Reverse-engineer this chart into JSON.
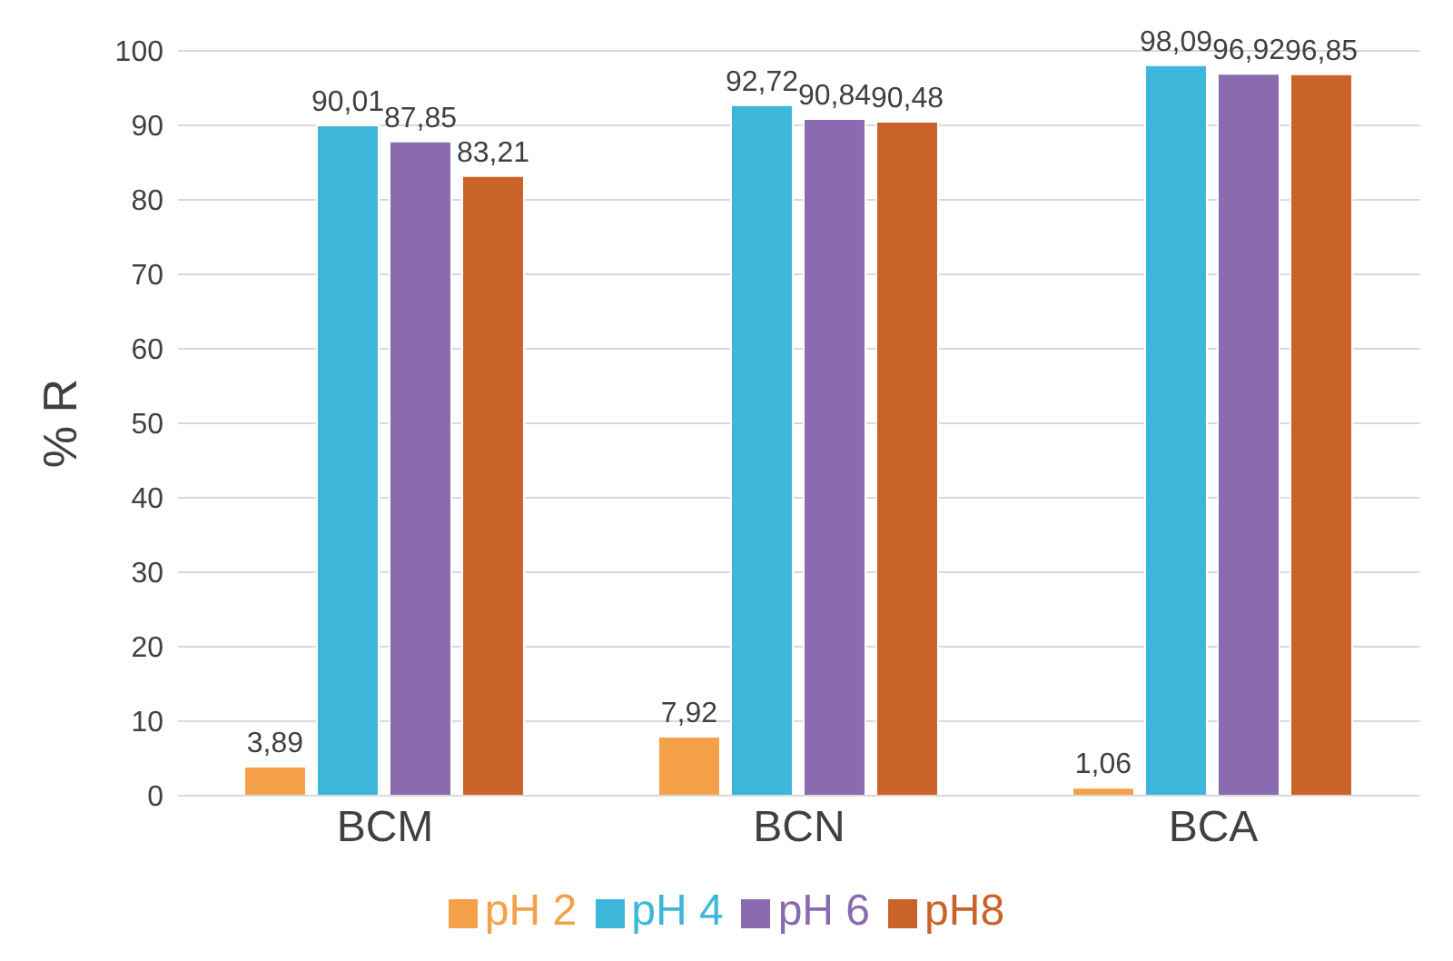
{
  "chart_data": {
    "type": "bar",
    "ylabel": "% R",
    "categories": [
      "BCM",
      "BCN",
      "BCA"
    ],
    "series": [
      {
        "name": "pH 2",
        "color": "#f4a14a",
        "values": [
          3.89,
          7.92,
          1.06
        ],
        "value_labels": [
          "3,89",
          "7,92",
          "1,06"
        ]
      },
      {
        "name": "pH 4",
        "color": "#3db7d9",
        "values": [
          90.01,
          92.72,
          98.09
        ],
        "value_labels": [
          "90,01",
          "92,72",
          "98,09"
        ]
      },
      {
        "name": "pH 6",
        "color": "#8b6bb0",
        "values": [
          87.85,
          90.84,
          96.92
        ],
        "value_labels": [
          "87,85",
          "90,84",
          "96,92"
        ]
      },
      {
        "name": "pH8",
        "color": "#c9632a",
        "values": [
          83.21,
          90.48,
          96.85
        ],
        "value_labels": [
          "83,21",
          "90,48",
          "96,85"
        ]
      }
    ],
    "ylim": [
      0,
      100
    ],
    "yticks": [
      0,
      10,
      20,
      30,
      40,
      50,
      60,
      70,
      80,
      90,
      100
    ],
    "grid": "y",
    "legend": "bottom"
  }
}
